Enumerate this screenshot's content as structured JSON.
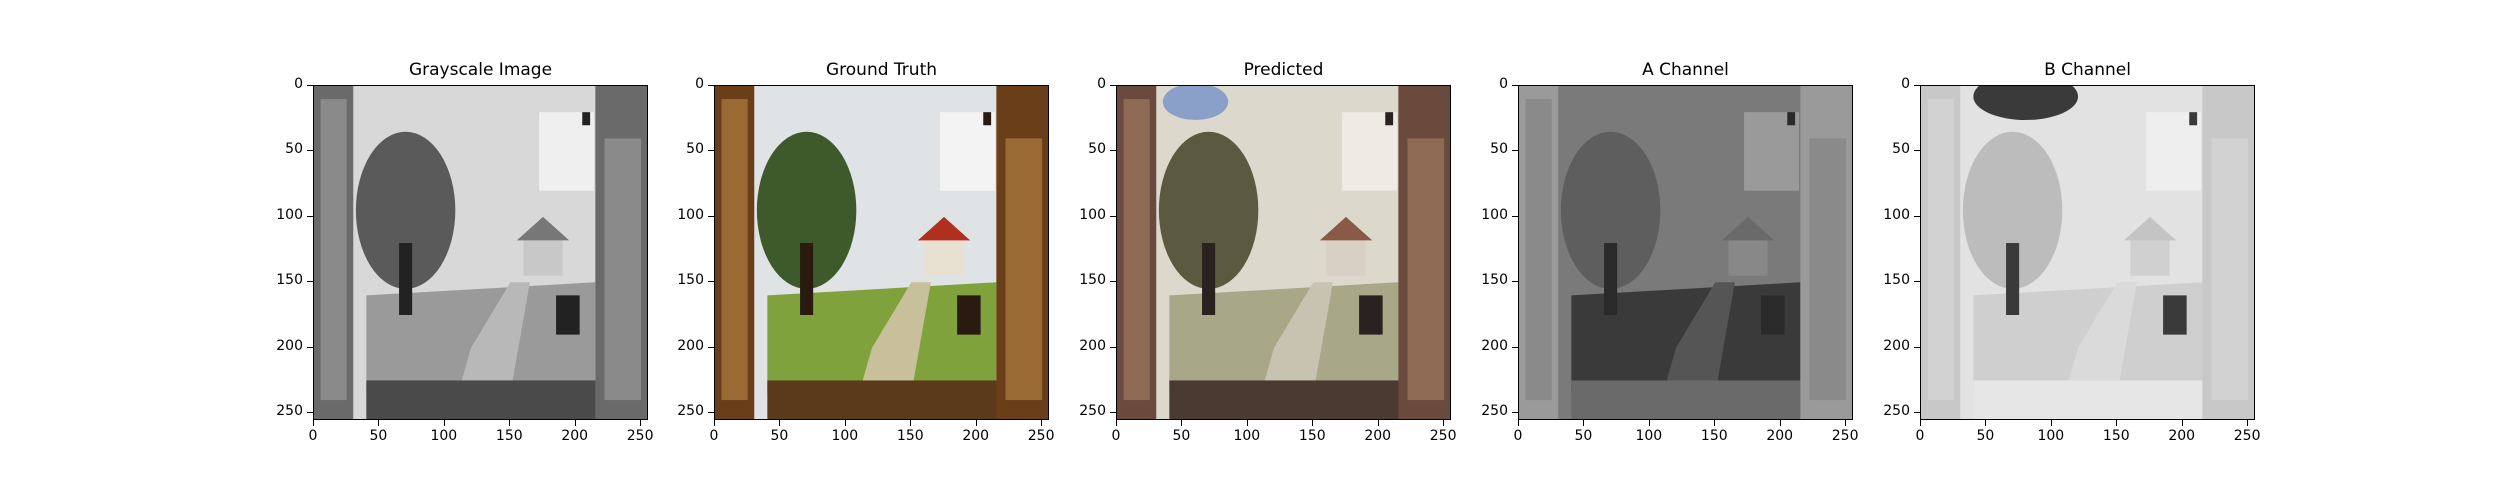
{
  "panels": [
    {
      "title": "Grayscale Image",
      "mode": "gray"
    },
    {
      "title": "Ground Truth",
      "mode": "color"
    },
    {
      "title": "Predicted",
      "mode": "pred"
    },
    {
      "title": "A Channel",
      "mode": "achan"
    },
    {
      "title": "B Channel",
      "mode": "bchan"
    }
  ],
  "axis": {
    "ticks": [
      0,
      50,
      100,
      150,
      200,
      250
    ],
    "range": [
      0,
      256
    ]
  }
}
